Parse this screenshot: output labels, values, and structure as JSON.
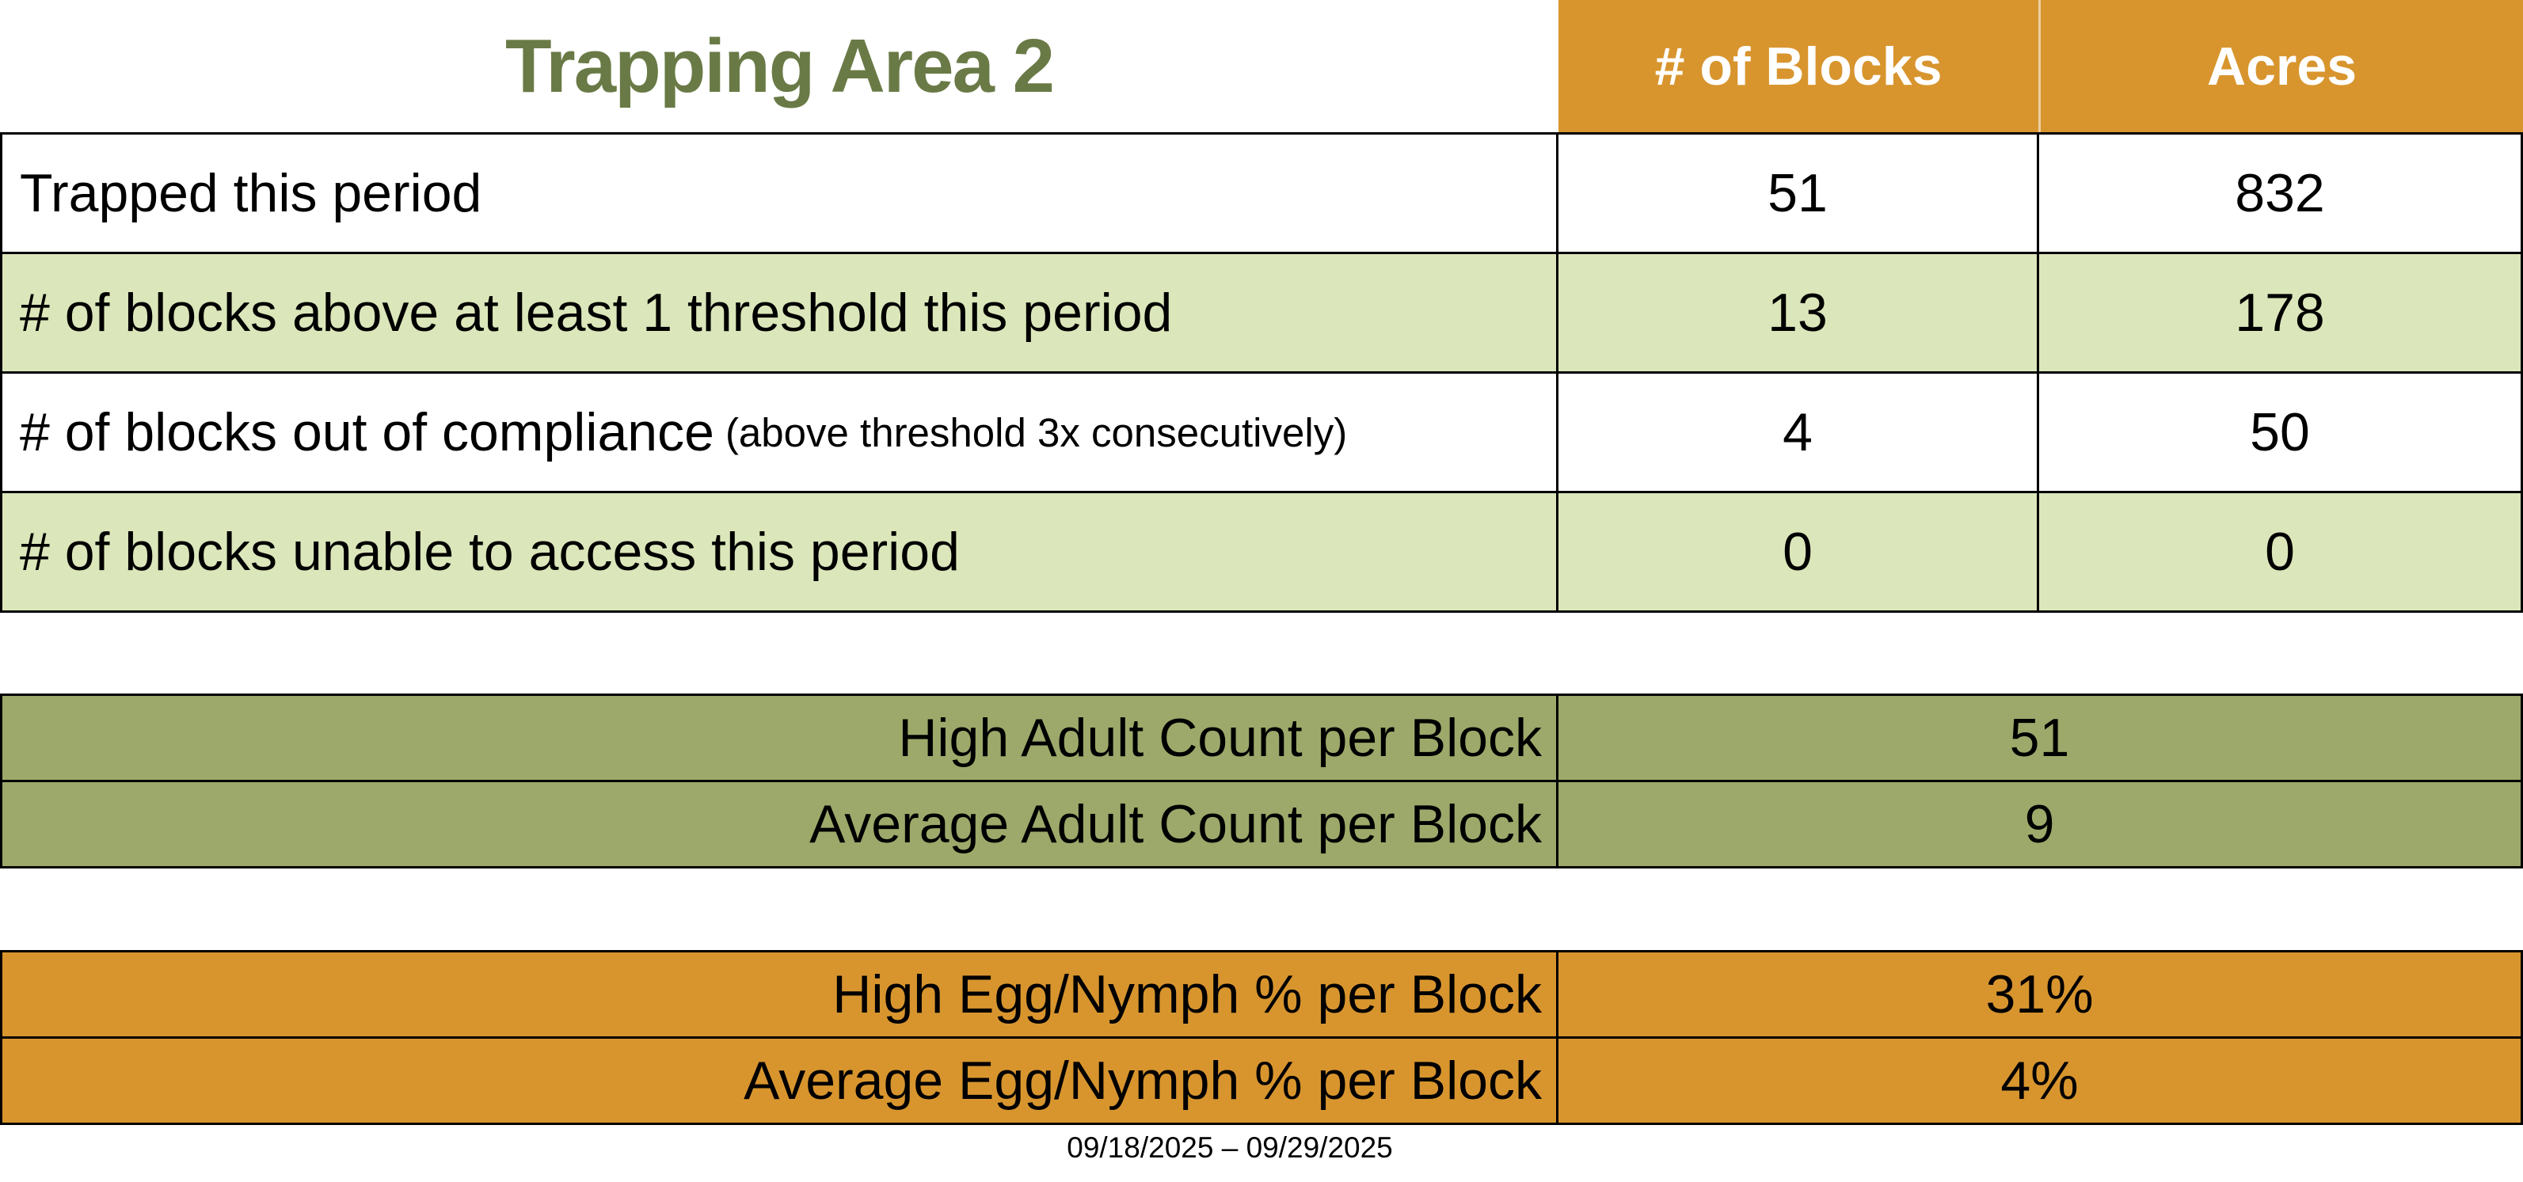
{
  "page": {
    "title": "Trapping Area 2",
    "date_range": "09/18/2025 – 09/29/2025"
  },
  "colors": {
    "header_orange": "#D8952E",
    "row_light_green": "#DBE6BA",
    "adult_olive": "#9CA96A",
    "title_text_green": "#6A7A46",
    "border_black": "#000000"
  },
  "summary_table": {
    "columns": [
      "# of Blocks",
      "Acres"
    ],
    "rows": [
      {
        "label": "Trapped this period",
        "note": "",
        "blocks": "51",
        "acres": "832"
      },
      {
        "label": "# of blocks above at least 1 threshold this period",
        "note": "",
        "blocks": "13",
        "acres": "178"
      },
      {
        "label": "# of blocks out of compliance",
        "note": "(above threshold 3x consecutively)",
        "blocks": "4",
        "acres": "50"
      },
      {
        "label": "# of blocks unable to access this period",
        "note": "",
        "blocks": "0",
        "acres": "0"
      }
    ]
  },
  "adult_table": {
    "rows": [
      {
        "label": "High Adult Count per Block",
        "value": "51"
      },
      {
        "label": "Average Adult Count per Block",
        "value": "9"
      }
    ]
  },
  "egg_table": {
    "rows": [
      {
        "label": "High Egg/Nymph % per Block",
        "value": "31%"
      },
      {
        "label": "Average Egg/Nymph % per Block",
        "value": "4%"
      }
    ]
  }
}
